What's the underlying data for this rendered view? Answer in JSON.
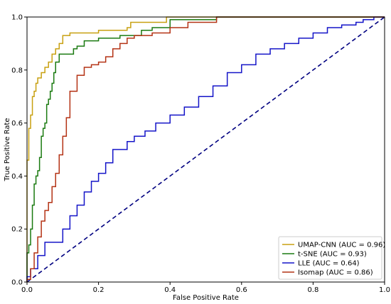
{
  "chart_data": {
    "type": "line",
    "title": "",
    "xlabel": "False Positive Rate",
    "ylabel": "True Positive Rate",
    "xlim": [
      0.0,
      1.0
    ],
    "ylim": [
      0.0,
      1.0
    ],
    "xticks": [
      "0.0",
      "0.2",
      "0.4",
      "0.6",
      "0.8",
      "1.0"
    ],
    "yticks": [
      "0.0",
      "0.2",
      "0.4",
      "0.6",
      "0.8",
      "1.0"
    ],
    "grid": false,
    "legend_position": "lower-right",
    "diagonal": {
      "x": [
        0,
        1
      ],
      "y": [
        0,
        1
      ],
      "color": "#000080",
      "style": "dashed"
    },
    "series": [
      {
        "name": "UMAP-CNN (AUC = 0.96)",
        "color": "#C8A010",
        "x": [
          0.0,
          0.0,
          0.005,
          0.005,
          0.01,
          0.01,
          0.015,
          0.015,
          0.02,
          0.02,
          0.025,
          0.025,
          0.03,
          0.03,
          0.04,
          0.04,
          0.05,
          0.05,
          0.06,
          0.06,
          0.07,
          0.07,
          0.08,
          0.08,
          0.09,
          0.09,
          0.1,
          0.1,
          0.12,
          0.12,
          0.2,
          0.2,
          0.28,
          0.28,
          0.29,
          0.29,
          0.39,
          0.39,
          0.53,
          0.53,
          1.0
        ],
        "y": [
          0.0,
          0.46,
          0.46,
          0.58,
          0.58,
          0.63,
          0.63,
          0.7,
          0.7,
          0.72,
          0.72,
          0.75,
          0.75,
          0.77,
          0.77,
          0.79,
          0.79,
          0.81,
          0.81,
          0.83,
          0.83,
          0.86,
          0.86,
          0.88,
          0.88,
          0.9,
          0.9,
          0.93,
          0.93,
          0.94,
          0.94,
          0.95,
          0.95,
          0.96,
          0.96,
          0.98,
          0.98,
          1.0,
          1.0,
          1.0,
          1.0
        ]
      },
      {
        "name": "t-SNE (AUC = 0.93)",
        "color": "#1A7A10",
        "x": [
          0.0,
          0.0,
          0.005,
          0.005,
          0.01,
          0.01,
          0.015,
          0.015,
          0.02,
          0.02,
          0.025,
          0.025,
          0.03,
          0.03,
          0.035,
          0.035,
          0.04,
          0.04,
          0.045,
          0.045,
          0.05,
          0.05,
          0.055,
          0.055,
          0.06,
          0.06,
          0.065,
          0.065,
          0.07,
          0.07,
          0.075,
          0.075,
          0.08,
          0.08,
          0.09,
          0.09,
          0.13,
          0.13,
          0.14,
          0.14,
          0.16,
          0.16,
          0.2,
          0.2,
          0.26,
          0.26,
          0.32,
          0.32,
          0.35,
          0.35,
          0.4,
          0.4,
          0.53,
          0.53,
          1.0
        ],
        "y": [
          0.0,
          0.11,
          0.11,
          0.14,
          0.14,
          0.2,
          0.2,
          0.29,
          0.29,
          0.37,
          0.37,
          0.4,
          0.4,
          0.42,
          0.42,
          0.47,
          0.47,
          0.55,
          0.55,
          0.58,
          0.58,
          0.6,
          0.6,
          0.67,
          0.67,
          0.69,
          0.69,
          0.72,
          0.72,
          0.75,
          0.75,
          0.79,
          0.79,
          0.83,
          0.83,
          0.86,
          0.86,
          0.88,
          0.88,
          0.89,
          0.89,
          0.91,
          0.91,
          0.92,
          0.92,
          0.93,
          0.93,
          0.95,
          0.95,
          0.96,
          0.96,
          0.99,
          0.99,
          1.0,
          1.0
        ]
      },
      {
        "name": "LLE (AUC = 0.64)",
        "color": "#1414C8",
        "x": [
          0.0,
          0.0,
          0.01,
          0.01,
          0.03,
          0.03,
          0.05,
          0.05,
          0.1,
          0.1,
          0.12,
          0.12,
          0.14,
          0.14,
          0.16,
          0.16,
          0.18,
          0.18,
          0.2,
          0.2,
          0.22,
          0.22,
          0.24,
          0.24,
          0.28,
          0.28,
          0.3,
          0.3,
          0.33,
          0.33,
          0.36,
          0.36,
          0.4,
          0.4,
          0.44,
          0.44,
          0.48,
          0.48,
          0.52,
          0.52,
          0.56,
          0.56,
          0.6,
          0.6,
          0.64,
          0.64,
          0.68,
          0.68,
          0.72,
          0.72,
          0.76,
          0.76,
          0.8,
          0.8,
          0.84,
          0.84,
          0.88,
          0.88,
          0.92,
          0.92,
          0.94,
          0.94,
          0.97,
          0.97,
          1.0
        ],
        "y": [
          0.0,
          0.02,
          0.02,
          0.05,
          0.05,
          0.1,
          0.1,
          0.15,
          0.15,
          0.2,
          0.2,
          0.25,
          0.25,
          0.29,
          0.29,
          0.34,
          0.34,
          0.38,
          0.38,
          0.41,
          0.41,
          0.45,
          0.45,
          0.5,
          0.5,
          0.53,
          0.53,
          0.55,
          0.55,
          0.57,
          0.57,
          0.6,
          0.6,
          0.63,
          0.63,
          0.66,
          0.66,
          0.7,
          0.7,
          0.74,
          0.74,
          0.79,
          0.79,
          0.82,
          0.82,
          0.86,
          0.86,
          0.88,
          0.88,
          0.9,
          0.9,
          0.92,
          0.92,
          0.94,
          0.94,
          0.96,
          0.96,
          0.97,
          0.97,
          0.98,
          0.98,
          0.99,
          0.99,
          1.0,
          1.0
        ]
      },
      {
        "name": "Isomap (AUC = 0.86)",
        "color": "#B43214",
        "x": [
          0.0,
          0.0,
          0.01,
          0.01,
          0.02,
          0.02,
          0.03,
          0.03,
          0.04,
          0.04,
          0.05,
          0.05,
          0.06,
          0.06,
          0.07,
          0.07,
          0.08,
          0.08,
          0.09,
          0.09,
          0.1,
          0.1,
          0.11,
          0.11,
          0.12,
          0.12,
          0.14,
          0.14,
          0.16,
          0.16,
          0.18,
          0.18,
          0.2,
          0.2,
          0.22,
          0.22,
          0.24,
          0.24,
          0.26,
          0.26,
          0.28,
          0.28,
          0.3,
          0.3,
          0.35,
          0.35,
          0.4,
          0.4,
          0.45,
          0.45,
          0.53,
          0.53,
          1.0
        ],
        "y": [
          0.0,
          0.01,
          0.01,
          0.05,
          0.05,
          0.11,
          0.11,
          0.17,
          0.17,
          0.23,
          0.23,
          0.27,
          0.27,
          0.3,
          0.3,
          0.36,
          0.36,
          0.41,
          0.41,
          0.48,
          0.48,
          0.55,
          0.55,
          0.62,
          0.62,
          0.72,
          0.72,
          0.78,
          0.78,
          0.81,
          0.81,
          0.82,
          0.82,
          0.83,
          0.83,
          0.85,
          0.85,
          0.88,
          0.88,
          0.9,
          0.9,
          0.92,
          0.92,
          0.93,
          0.93,
          0.94,
          0.94,
          0.96,
          0.96,
          0.98,
          0.98,
          1.0,
          1.0
        ]
      }
    ]
  }
}
